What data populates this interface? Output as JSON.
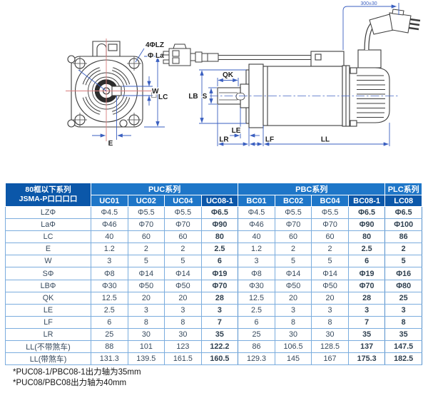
{
  "colors": {
    "header_blue": "#1e76c8",
    "header_dark_blue": "#0b57a9",
    "grid_blue": "#7badde",
    "dimension_blue": "#3a5fc0",
    "centerline_red": "#d87c7c",
    "data_text": "#374a5e"
  },
  "diagram": {
    "front": {
      "label_4lz": "4ΦLZ",
      "label_la": "Φ La",
      "label_w": "W",
      "label_lc": "LC",
      "label_e": "E"
    },
    "side": {
      "label_qk": "QK",
      "label_lb": "LB",
      "label_s": "S",
      "label_le": "LE",
      "label_lr": "LR",
      "label_lf": "LF",
      "label_ll": "LL",
      "label_cable": "300±30"
    }
  },
  "table": {
    "corner": {
      "line1": "80框以下系列",
      "line2": "JSMA-P口口口口"
    },
    "groups": [
      {
        "label": "PUC系列",
        "span": 4
      },
      {
        "label": "PBC系列",
        "span": 4
      },
      {
        "label": "PLC系列",
        "span": 1
      }
    ],
    "columns": [
      {
        "label": "UC01",
        "highlight": false
      },
      {
        "label": "UC02",
        "highlight": false
      },
      {
        "label": "UC04",
        "highlight": false
      },
      {
        "label": "UC08-1",
        "highlight": true
      },
      {
        "label": "BC01",
        "highlight": false
      },
      {
        "label": "BC02",
        "highlight": false
      },
      {
        "label": "BC04",
        "highlight": false
      },
      {
        "label": "BC08-1",
        "highlight": true
      },
      {
        "label": "LC08",
        "highlight": true
      }
    ],
    "rows": [
      {
        "label": "LZΦ",
        "values": [
          "Φ4.5",
          "Φ5.5",
          "Φ5.5",
          "Φ6.5",
          "Φ4.5",
          "Φ5.5",
          "Φ5.5",
          "Φ6.5",
          "Φ6.5"
        ]
      },
      {
        "label": "LaΦ",
        "values": [
          "Φ46",
          "Φ70",
          "Φ70",
          "Φ90",
          "Φ46",
          "Φ70",
          "Φ70",
          "Φ90",
          "Φ100"
        ]
      },
      {
        "label": "LC",
        "values": [
          "40",
          "60",
          "60",
          "80",
          "40",
          "60",
          "60",
          "80",
          "86"
        ]
      },
      {
        "label": "E",
        "values": [
          "1.2",
          "2",
          "2",
          "2.5",
          "1.2",
          "2",
          "2",
          "2.5",
          "2"
        ]
      },
      {
        "label": "W",
        "values": [
          "3",
          "5",
          "5",
          "6",
          "3",
          "5",
          "5",
          "6",
          "5"
        ]
      },
      {
        "label": "SΦ",
        "values": [
          "Φ8",
          "Φ14",
          "Φ14",
          "Φ19",
          "Φ8",
          "Φ14",
          "Φ14",
          "Φ19",
          "Φ16"
        ]
      },
      {
        "label": "LBΦ",
        "values": [
          "Φ30",
          "Φ50",
          "Φ50",
          "Φ70",
          "Φ30",
          "Φ50",
          "Φ50",
          "Φ70",
          "Φ80"
        ]
      },
      {
        "label": "QK",
        "values": [
          "12.5",
          "20",
          "20",
          "28",
          "12.5",
          "20",
          "20",
          "28",
          "25"
        ]
      },
      {
        "label": "LE",
        "values": [
          "2.5",
          "3",
          "3",
          "3",
          "2.5",
          "3",
          "3",
          "3",
          "3"
        ]
      },
      {
        "label": "LF",
        "values": [
          "6",
          "8",
          "8",
          "7",
          "6",
          "8",
          "8",
          "7",
          "8"
        ]
      },
      {
        "label": "LR",
        "values": [
          "25",
          "30",
          "30",
          "35",
          "25",
          "30",
          "30",
          "35",
          "35"
        ]
      },
      {
        "label": "LL(不带煞车)",
        "values": [
          "88",
          "101",
          "123",
          "122.2",
          "86",
          "106.5",
          "128.5",
          "137",
          "147.5"
        ]
      },
      {
        "label": "LL(带煞车)",
        "values": [
          "131.3",
          "139.5",
          "161.5",
          "160.5",
          "129.3",
          "145",
          "167",
          "175.3",
          "182.5"
        ]
      }
    ]
  },
  "footnotes": [
    "*PUC08-1/PBC08-1出力轴为35mm",
    "*PUC08/PBC08出力轴为40mm"
  ]
}
